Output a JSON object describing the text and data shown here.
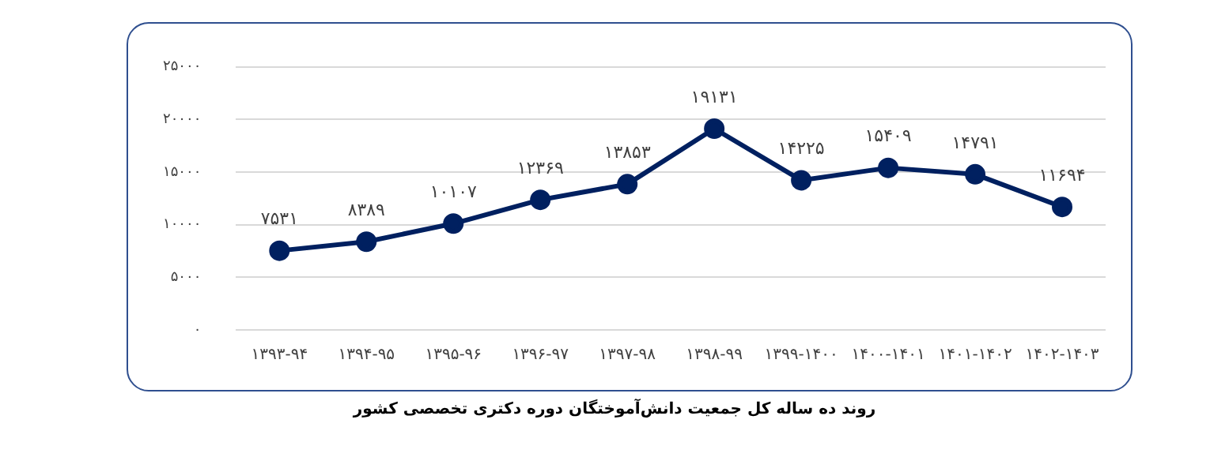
{
  "chart_data": {
    "type": "line",
    "title": "روند ده ساله کل جمعیت دانش‌آموختگان دوره دکتری تخصصی کشور",
    "categories": [
      "۱۳۹۳-۹۴",
      "۱۳۹۴-۹۵",
      "۱۳۹۵-۹۶",
      "۱۳۹۶-۹۷",
      "۱۳۹۷-۹۸",
      "۱۳۹۸-۹۹",
      "۱۳۹۹-۱۴۰۰",
      "۱۴۰۰-۱۴۰۱",
      "۱۴۰۱-۱۴۰۲",
      "۱۴۰۲-۱۴۰۳"
    ],
    "series": [
      {
        "color": "#002060",
        "values": [
          7531,
          8389,
          10107,
          12369,
          13853,
          19131,
          14225,
          15409,
          14791,
          11694
        ],
        "value_labels": [
          "۷۵۳۱",
          "۸۳۸۹",
          "۱۰۱۰۷",
          "۱۲۳۶۹",
          "۱۳۸۵۳",
          "۱۹۱۳۱",
          "۱۴۲۲۵",
          "۱۵۴۰۹",
          "۱۴۷۹۱",
          "۱۱۶۹۴"
        ]
      }
    ],
    "ylim": [
      0,
      25000
    ],
    "yticks": [
      {
        "value": 0,
        "label": "۰"
      },
      {
        "value": 5000,
        "label": "۵۰۰۰"
      },
      {
        "value": 10000,
        "label": "۱۰۰۰۰"
      },
      {
        "value": 15000,
        "label": "۱۵۰۰۰"
      },
      {
        "value": 20000,
        "label": "۲۰۰۰۰"
      },
      {
        "value": 25000,
        "label": "۲۵۰۰۰"
      }
    ],
    "grid": "y",
    "legend": false,
    "marker": "circle",
    "line_style": "solid"
  }
}
